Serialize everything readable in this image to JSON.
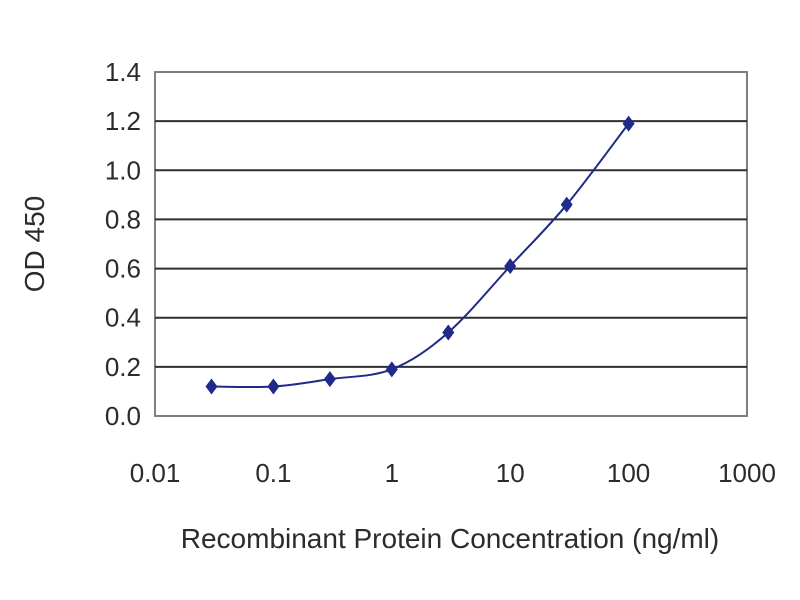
{
  "chart_data": {
    "type": "line",
    "title": "",
    "xlabel": "Recombinant Protein Concentration (ng/ml)",
    "ylabel": "OD 450",
    "x_scale": "log",
    "xlim": [
      0.01,
      1000
    ],
    "ylim": [
      0.0,
      1.4
    ],
    "x_ticks": [
      0.01,
      0.1,
      1,
      10,
      100,
      1000
    ],
    "x_tick_labels": [
      "0.01",
      "0.1",
      "1",
      "10",
      "100",
      "1000"
    ],
    "y_ticks": [
      0.0,
      0.2,
      0.4,
      0.6,
      0.8,
      1.0,
      1.2,
      1.4
    ],
    "y_tick_labels": [
      "0.0",
      "0.2",
      "0.4",
      "0.6",
      "0.8",
      "1.0",
      "1.2",
      "1.4"
    ],
    "grid": "horizontal",
    "legend": "none",
    "series": [
      {
        "color": "#1f2a8a",
        "marker": "diamond",
        "x": [
          0.03,
          0.1,
          0.3,
          1,
          3,
          10,
          30,
          100
        ],
        "y": [
          0.12,
          0.12,
          0.15,
          0.19,
          0.34,
          0.61,
          0.86,
          1.19
        ]
      }
    ]
  }
}
